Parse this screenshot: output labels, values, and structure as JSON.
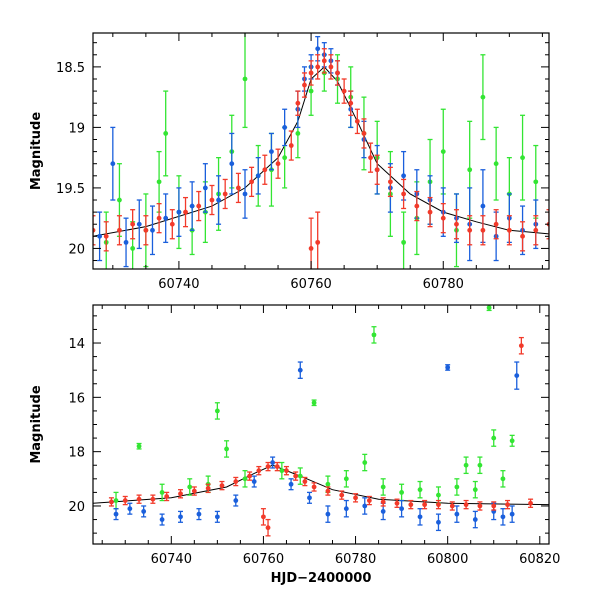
{
  "colors": {
    "green": "#33e533",
    "blue": "#1a5fdc",
    "red": "#f23a2a",
    "model": "#000000",
    "frame": "#000000"
  },
  "chart_data": [
    {
      "type": "scatter",
      "title": "",
      "xlabel": "",
      "ylabel": "Magnitude",
      "xlim": [
        60727,
        60796
      ],
      "ylim": [
        20.17,
        18.22
      ],
      "y_inverted": true,
      "x_ticks": [
        60740,
        60760,
        60780
      ],
      "y_ticks": [
        18.5,
        19,
        19.5,
        20
      ],
      "x_tick_labels": [
        "60740",
        "60760",
        "60780"
      ],
      "y_tick_labels": [
        "18.5",
        "19",
        "19.5",
        "20"
      ],
      "grid": false,
      "legend": "none",
      "model_curve": {
        "x": [
          60727,
          60735,
          60745,
          60750,
          60755,
          60758,
          60760,
          60762,
          60764,
          60767,
          60770,
          60775,
          60780,
          60785,
          60790,
          60796
        ],
        "y": [
          19.9,
          19.82,
          19.65,
          19.5,
          19.25,
          18.95,
          18.6,
          18.5,
          18.62,
          18.95,
          19.3,
          19.55,
          19.7,
          19.78,
          19.85,
          19.88
        ]
      },
      "series": [
        {
          "color": "green",
          "x": [
            60729,
            60731,
            60733,
            60735,
            60737,
            60738,
            60740,
            60742,
            60744,
            60746,
            60748,
            60750,
            60752,
            60754,
            60756,
            60758,
            60760,
            60762,
            60764,
            60766,
            60768,
            60770,
            60772,
            60774,
            60776,
            60778,
            60780,
            60782,
            60784,
            60786,
            60788,
            60790,
            60792,
            60794
          ],
          "y": [
            19.95,
            19.6,
            20.0,
            19.85,
            19.45,
            19.05,
            19.7,
            19.85,
            19.7,
            19.55,
            19.2,
            18.6,
            19.4,
            19.35,
            19.25,
            19.05,
            18.7,
            18.55,
            18.6,
            18.75,
            19.05,
            19.25,
            19.55,
            19.95,
            19.75,
            19.45,
            19.2,
            19.85,
            19.35,
            18.75,
            19.3,
            19.55,
            19.25,
            19.45
          ],
          "err": [
            0.25,
            0.3,
            0.22,
            0.3,
            0.25,
            0.35,
            0.3,
            0.2,
            0.25,
            0.3,
            0.3,
            0.4,
            0.25,
            0.3,
            0.25,
            0.2,
            0.2,
            0.15,
            0.2,
            0.25,
            0.3,
            0.3,
            0.35,
            0.25,
            0.3,
            0.35,
            0.35,
            0.3,
            0.4,
            0.35,
            0.3,
            0.3,
            0.35,
            0.3
          ]
        },
        {
          "color": "blue",
          "x": [
            60728,
            60730,
            60732,
            60734,
            60736,
            60738,
            60740,
            60742,
            60744,
            60746,
            60748,
            60750,
            60752,
            60754,
            60756,
            60758,
            60759,
            60760,
            60761,
            60762,
            60763,
            60764,
            60766,
            60768,
            60770,
            60772,
            60774,
            60776,
            60778,
            60780,
            60782,
            60784,
            60786,
            60788,
            60790,
            60792,
            60794
          ],
          "y": [
            19.9,
            19.3,
            19.95,
            19.8,
            19.85,
            19.75,
            19.7,
            19.65,
            19.5,
            19.6,
            19.3,
            19.55,
            19.4,
            19.2,
            19.0,
            18.85,
            18.6,
            18.5,
            18.35,
            18.4,
            18.45,
            18.55,
            18.85,
            19.1,
            19.35,
            19.5,
            19.4,
            19.55,
            19.6,
            19.7,
            19.75,
            19.8,
            19.65,
            19.9,
            19.75,
            19.85,
            19.8
          ],
          "err": [
            0.2,
            0.3,
            0.2,
            0.2,
            0.2,
            0.2,
            0.2,
            0.2,
            0.2,
            0.2,
            0.25,
            0.2,
            0.15,
            0.15,
            0.15,
            0.15,
            0.1,
            0.1,
            0.1,
            0.1,
            0.1,
            0.1,
            0.15,
            0.15,
            0.2,
            0.2,
            0.2,
            0.2,
            0.2,
            0.2,
            0.2,
            0.3,
            0.3,
            0.2,
            0.2,
            0.2,
            0.2
          ]
        },
        {
          "color": "red",
          "x": [
            60727,
            60729,
            60731,
            60733,
            60735,
            60737,
            60739,
            60741,
            60743,
            60745,
            60747,
            60749,
            60751,
            60753,
            60755,
            60757,
            60758,
            60759,
            60760,
            60761,
            60762,
            60763,
            60764,
            60765,
            60766,
            60767,
            60768,
            60769,
            60770,
            60772,
            60774,
            60776,
            60778,
            60780,
            60782,
            60784,
            60786,
            60788,
            60790,
            60792,
            60794,
            60796
          ],
          "y": [
            19.85,
            19.9,
            19.85,
            19.8,
            19.85,
            19.75,
            19.8,
            19.7,
            19.65,
            19.6,
            19.55,
            19.5,
            19.45,
            19.35,
            19.3,
            19.15,
            18.8,
            18.65,
            18.55,
            18.5,
            18.45,
            18.5,
            18.55,
            18.7,
            18.8,
            18.95,
            19.05,
            19.25,
            19.35,
            19.45,
            19.55,
            19.65,
            19.7,
            19.75,
            19.8,
            19.85,
            19.85,
            19.8,
            19.85,
            19.9,
            19.85,
            19.8
          ],
          "err": [
            0.12,
            0.12,
            0.12,
            0.12,
            0.12,
            0.12,
            0.12,
            0.12,
            0.12,
            0.12,
            0.12,
            0.12,
            0.12,
            0.12,
            0.12,
            0.12,
            0.1,
            0.1,
            0.1,
            0.1,
            0.1,
            0.1,
            0.1,
            0.1,
            0.1,
            0.1,
            0.12,
            0.12,
            0.12,
            0.12,
            0.12,
            0.12,
            0.12,
            0.12,
            0.12,
            0.12,
            0.12,
            0.12,
            0.12,
            0.12,
            0.12,
            0.12
          ]
        },
        {
          "color": "red",
          "x": [
            60760,
            60761
          ],
          "y": [
            20.0,
            19.95
          ],
          "err": [
            0.25,
            0.25
          ]
        }
      ]
    },
    {
      "type": "scatter",
      "title": "",
      "xlabel": "HJD−2400000",
      "ylabel": "Magnitude",
      "xlim": [
        60723,
        60822
      ],
      "ylim": [
        21.4,
        12.6
      ],
      "y_inverted": true,
      "x_ticks": [
        60740,
        60760,
        60780,
        60800,
        60820
      ],
      "y_ticks": [
        14,
        16,
        18,
        20
      ],
      "x_tick_labels": [
        "60740",
        "60760",
        "60780",
        "60800",
        "60820"
      ],
      "y_tick_labels": [
        "14",
        "16",
        "18",
        "20"
      ],
      "grid": false,
      "legend": "none",
      "model_curve": {
        "x": [
          60723,
          60740,
          60752,
          60758,
          60762,
          60768,
          60775,
          60785,
          60800,
          60822
        ],
        "y": [
          19.9,
          19.7,
          19.3,
          18.8,
          18.5,
          18.9,
          19.4,
          19.75,
          19.9,
          19.95
        ]
      },
      "series": [
        {
          "color": "green",
          "x": [
            60728,
            60733,
            60738,
            60744,
            60748,
            60750,
            60752,
            60756,
            60764,
            60768,
            60771,
            60774,
            60778,
            60782,
            60784,
            60786,
            60790,
            60794,
            60798,
            60802,
            60804,
            60806,
            60807,
            60809,
            60810,
            60812,
            60814
          ],
          "y": [
            19.8,
            17.8,
            19.5,
            19.3,
            19.2,
            16.5,
            17.9,
            19.0,
            18.7,
            18.9,
            16.2,
            19.2,
            19.0,
            18.4,
            13.7,
            19.3,
            19.5,
            19.4,
            19.6,
            19.3,
            18.5,
            19.4,
            18.5,
            12.7,
            17.5,
            19.0,
            17.6
          ],
          "err": [
            0.3,
            0.1,
            0.3,
            0.3,
            0.3,
            0.3,
            0.3,
            0.3,
            0.3,
            0.3,
            0.1,
            0.3,
            0.3,
            0.3,
            0.3,
            0.3,
            0.3,
            0.3,
            0.3,
            0.3,
            0.3,
            0.3,
            0.3,
            0.1,
            0.3,
            0.3,
            0.2
          ]
        },
        {
          "color": "blue",
          "x": [
            60728,
            60731,
            60734,
            60738,
            60742,
            60746,
            60750,
            60754,
            60758,
            60762,
            60766,
            60768,
            60770,
            60774,
            60778,
            60782,
            60786,
            60790,
            60794,
            60798,
            60800,
            60802,
            60806,
            60810,
            60812,
            60814,
            60815
          ],
          "y": [
            20.3,
            20.1,
            20.2,
            20.5,
            20.4,
            20.3,
            20.4,
            19.8,
            19.1,
            18.4,
            19.2,
            15.0,
            19.7,
            20.3,
            20.1,
            20.0,
            20.2,
            20.1,
            20.4,
            20.6,
            14.9,
            20.3,
            20.5,
            20.2,
            20.4,
            20.3,
            15.2
          ],
          "err": [
            0.2,
            0.2,
            0.2,
            0.2,
            0.2,
            0.2,
            0.2,
            0.2,
            0.2,
            0.2,
            0.2,
            0.3,
            0.2,
            0.3,
            0.3,
            0.3,
            0.3,
            0.3,
            0.3,
            0.3,
            0.1,
            0.3,
            0.3,
            0.3,
            0.3,
            0.3,
            0.5
          ]
        },
        {
          "color": "red",
          "x": [
            60727,
            60730,
            60733,
            60736,
            60739,
            60742,
            60745,
            60748,
            60751,
            60754,
            60757,
            60759,
            60761,
            60763,
            60765,
            60767,
            60769,
            60771,
            60774,
            60777,
            60780,
            60783,
            60786,
            60789,
            60792,
            60795,
            60798,
            60801,
            60804,
            60807,
            60810,
            60813,
            60816,
            60818
          ],
          "y": [
            19.85,
            19.8,
            19.75,
            19.75,
            19.65,
            19.55,
            19.45,
            19.35,
            19.25,
            19.1,
            18.9,
            18.7,
            18.55,
            18.55,
            18.7,
            18.9,
            19.1,
            19.3,
            19.45,
            19.6,
            19.7,
            19.8,
            19.85,
            19.9,
            19.95,
            19.95,
            19.95,
            20.0,
            19.95,
            20.0,
            20.0,
            19.95,
            14.1,
            19.9
          ],
          "err": [
            0.15,
            0.15,
            0.15,
            0.15,
            0.15,
            0.15,
            0.15,
            0.15,
            0.15,
            0.15,
            0.15,
            0.15,
            0.15,
            0.15,
            0.15,
            0.15,
            0.15,
            0.15,
            0.15,
            0.15,
            0.15,
            0.15,
            0.15,
            0.15,
            0.15,
            0.15,
            0.15,
            0.15,
            0.15,
            0.15,
            0.15,
            0.15,
            0.3,
            0.15
          ]
        },
        {
          "color": "red",
          "x": [
            60760,
            60761
          ],
          "y": [
            20.4,
            20.8
          ],
          "err": [
            0.3,
            0.3
          ]
        }
      ]
    }
  ]
}
